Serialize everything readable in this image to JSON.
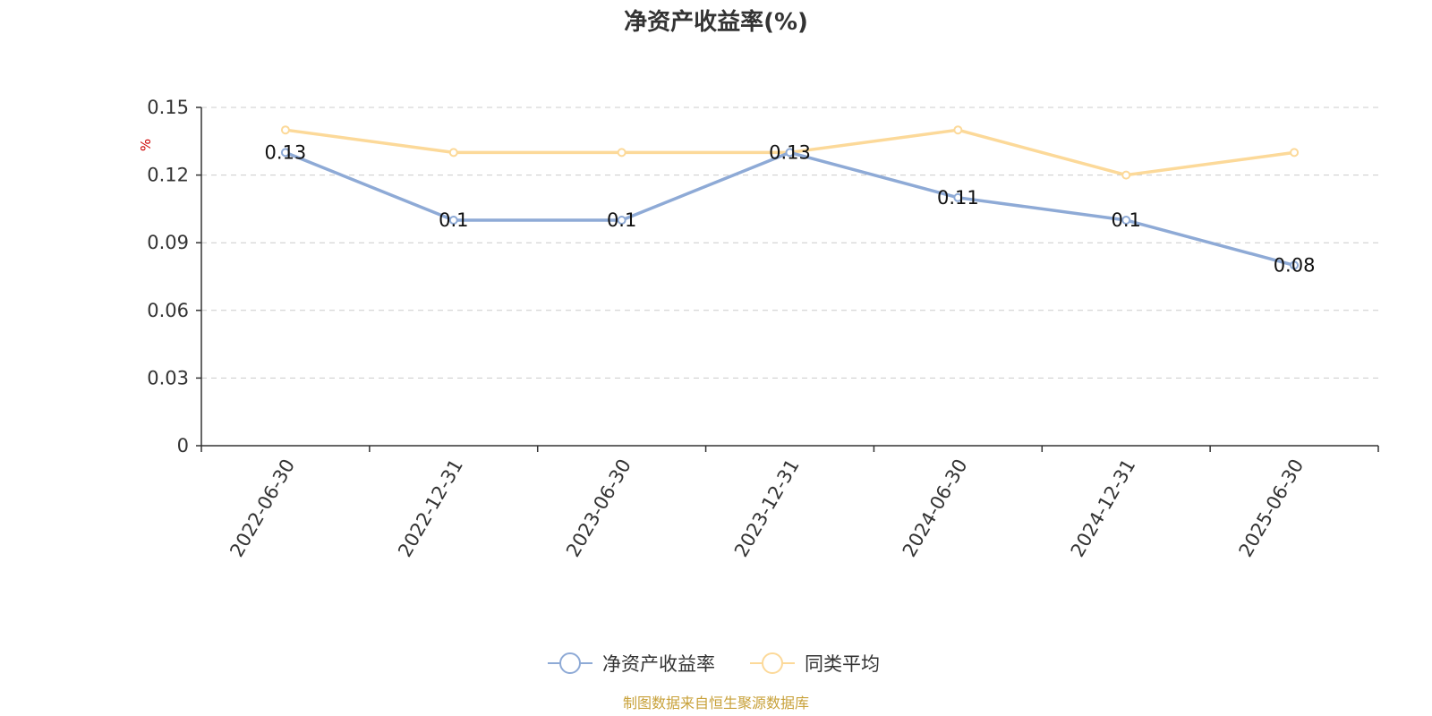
{
  "chart_data": {
    "type": "line",
    "title": "净资产收益率(%)",
    "ylabel": "%",
    "xlabel": "",
    "categories": [
      "2022-06-30",
      "2022-12-31",
      "2023-06-30",
      "2023-12-31",
      "2024-06-30",
      "2024-12-31",
      "2025-06-30"
    ],
    "series": [
      {
        "name": "净资产收益率",
        "values": [
          0.13,
          0.1,
          0.1,
          0.13,
          0.11,
          0.1,
          0.08
        ],
        "data_labels": [
          "0.13",
          "0.1",
          "0.1",
          "0.13",
          "0.11",
          "0.1",
          "0.08"
        ],
        "color": "#8eaad6"
      },
      {
        "name": "同类平均",
        "values": [
          0.14,
          0.13,
          0.13,
          0.13,
          0.14,
          0.12,
          0.13
        ],
        "color": "#fcd999"
      }
    ],
    "ylim": [
      0,
      0.15
    ],
    "yticks": [
      0,
      0.03,
      0.06,
      0.09,
      0.12,
      0.15
    ],
    "ytick_labels": [
      "0",
      "0.03",
      "0.06",
      "0.09",
      "0.12",
      "0.15"
    ],
    "grid": true,
    "legend_position": "bottom-center"
  },
  "colors": {
    "axis": "#333333",
    "grid": "#cccccc",
    "unit": "#cc0000",
    "source": "#c8a13a"
  },
  "footer": {
    "source": "制图数据来自恒生聚源数据库"
  }
}
